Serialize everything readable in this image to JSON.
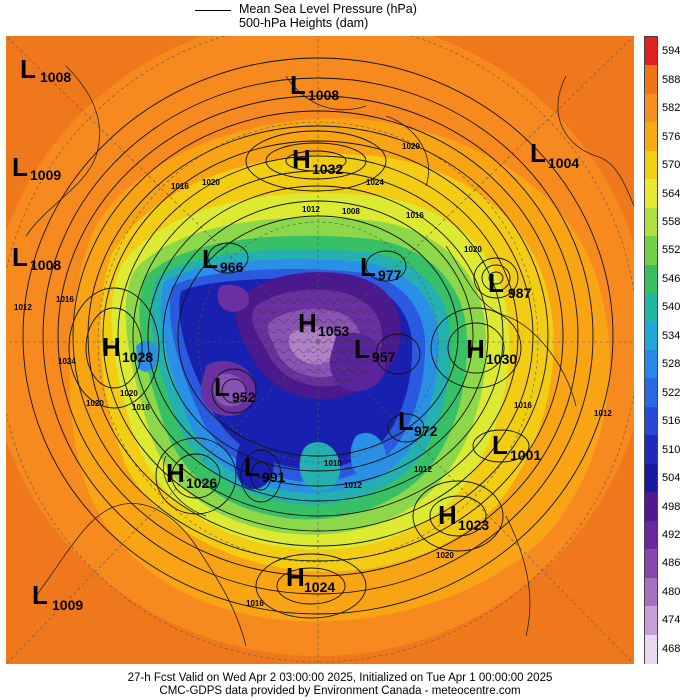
{
  "legend": {
    "line_label_1": "Mean Sea Level Pressure (hPa)",
    "line_label_2": "500-hPa Heights (dam)"
  },
  "colorbar": {
    "levels": [
      "594",
      "588",
      "582",
      "576",
      "570",
      "564",
      "558",
      "552",
      "546",
      "540",
      "534",
      "528",
      "522",
      "516",
      "510",
      "504",
      "498",
      "492",
      "486",
      "480",
      "474",
      "468"
    ],
    "colors": [
      "#e02020",
      "#f27418",
      "#f79020",
      "#f8aa10",
      "#f0d010",
      "#e6ea30",
      "#b0e040",
      "#70d048",
      "#38c060",
      "#20b8a0",
      "#20a8d8",
      "#2888e8",
      "#2868e0",
      "#2848d8",
      "#2028c0",
      "#1818a0",
      "#501890",
      "#6828a0",
      "#8848b0",
      "#a870c0",
      "#c8a0d8",
      "#e8d8f0"
    ]
  },
  "pressure_centers": [
    {
      "type": "L",
      "value": "1008",
      "color": "#000000"
    },
    {
      "type": "L",
      "value": "1008",
      "color": "#000000"
    },
    {
      "type": "H",
      "value": "1032",
      "color": "#000000"
    },
    {
      "type": "L",
      "value": "1004",
      "color": "#000000"
    },
    {
      "type": "L",
      "value": "1009",
      "color": "#000000"
    },
    {
      "type": "L",
      "value": "1008",
      "color": "#000000"
    },
    {
      "type": "L",
      "value": "966",
      "color": "#000000"
    },
    {
      "type": "L",
      "value": "977",
      "color": "#000000"
    },
    {
      "type": "L",
      "value": "987",
      "color": "#000000"
    },
    {
      "type": "H",
      "value": "1053",
      "color": "#000000"
    },
    {
      "type": "L",
      "value": "957",
      "color": "#000000"
    },
    {
      "type": "H",
      "value": "1028",
      "color": "#000000"
    },
    {
      "type": "H",
      "value": "1030",
      "color": "#000000"
    },
    {
      "type": "L",
      "value": "952",
      "color": "#000000"
    },
    {
      "type": "L",
      "value": "972",
      "color": "#000000"
    },
    {
      "type": "L",
      "value": "1001",
      "color": "#000000"
    },
    {
      "type": "H",
      "value": "1026",
      "color": "#000000"
    },
    {
      "type": "L",
      "value": "991",
      "color": "#000000"
    },
    {
      "type": "H",
      "value": "1023",
      "color": "#000000"
    },
    {
      "type": "H",
      "value": "1024",
      "color": "#000000"
    },
    {
      "type": "L",
      "value": "1009",
      "color": "#000000"
    }
  ],
  "isobar_labels": [
    "1020",
    "1024",
    "1016",
    "1020",
    "1012",
    "1008",
    "1016",
    "1016",
    "1016",
    "1012",
    "1024",
    "1020",
    "1012",
    "1020",
    "1016",
    "1012",
    "1020",
    "1010",
    "1012",
    "1020",
    "1016"
  ],
  "footer": {
    "line1": "27-h Fcst Valid on Wed Apr  2 03:00:00 2025, Initialized on Tue Apr  1 00:00:00 2025",
    "line2": "CMC-GDPS data provided by Environment Canada - meteocentre.com"
  }
}
